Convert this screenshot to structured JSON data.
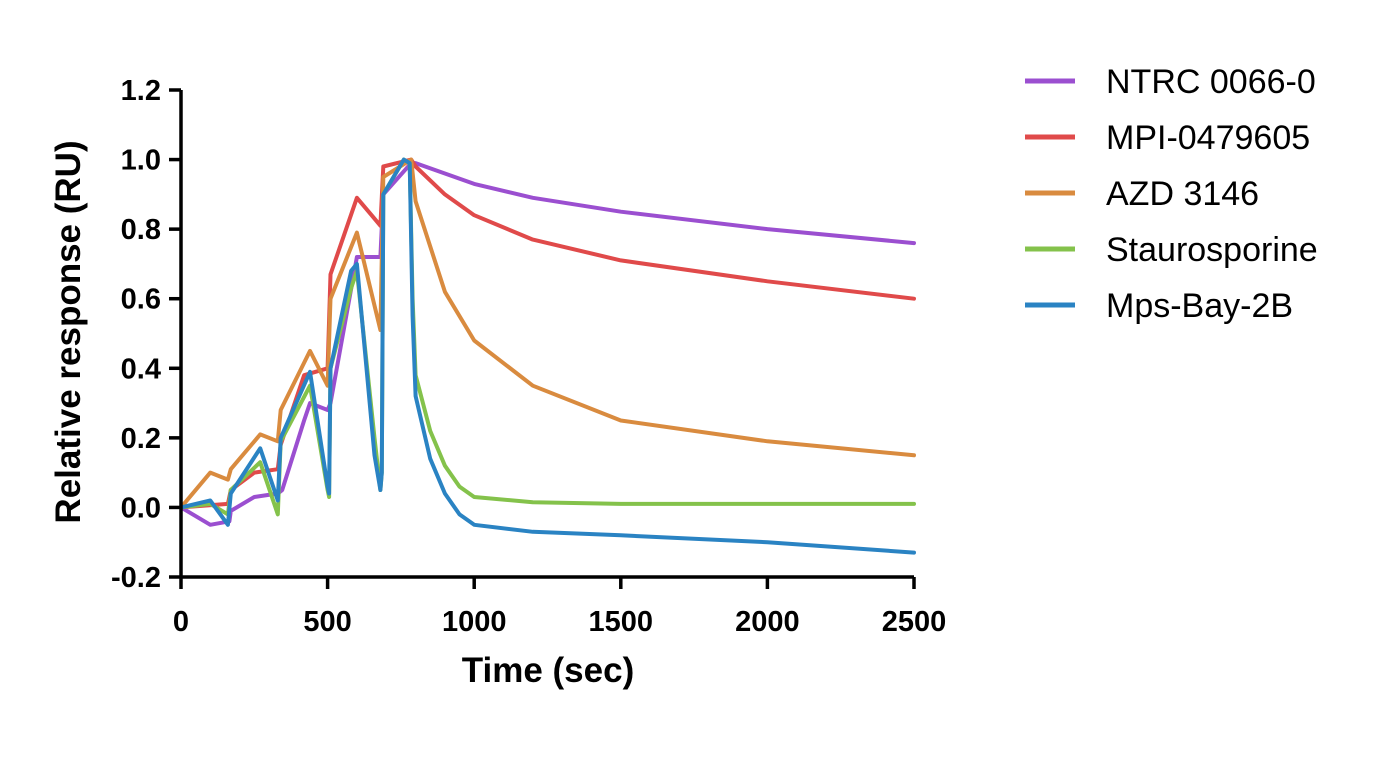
{
  "chart_data": {
    "type": "line",
    "title": "",
    "xlabel": "Time (sec)",
    "ylabel": "Relative response (RU)",
    "xlim": [
      0,
      2500
    ],
    "ylim": [
      -0.2,
      1.2
    ],
    "xticks": [
      0,
      500,
      1000,
      1500,
      2000,
      2500
    ],
    "xtick_labels": [
      "0",
      "500",
      "1000",
      "1500",
      "2000",
      "2500"
    ],
    "yticks": [
      -0.2,
      0.0,
      0.2,
      0.4,
      0.6,
      0.8,
      1.0,
      1.2
    ],
    "ytick_labels": [
      "-0.2",
      "0.0",
      "0.2",
      "0.4",
      "0.6",
      "0.8",
      "1.0",
      "1.2"
    ],
    "grid": false,
    "legend_position": "right",
    "series": [
      {
        "name": "NTRC 0066-0",
        "color": "#9b4fd0",
        "x": [
          0,
          100,
          165,
          170,
          250,
          330,
          345,
          420,
          440,
          500,
          510,
          600,
          680,
          690,
          785,
          800,
          900,
          1000,
          1200,
          1500,
          2000,
          2500
        ],
        "y": [
          0.0,
          -0.05,
          -0.04,
          -0.01,
          0.03,
          0.04,
          0.05,
          0.25,
          0.3,
          0.28,
          0.3,
          0.72,
          0.72,
          0.9,
          0.99,
          0.99,
          0.96,
          0.93,
          0.89,
          0.85,
          0.8,
          0.76
        ]
      },
      {
        "name": "MPI-0479605",
        "color": "#e04a4a",
        "x": [
          0,
          160,
          170,
          250,
          330,
          340,
          420,
          500,
          510,
          600,
          650,
          680,
          690,
          785,
          800,
          900,
          1000,
          1200,
          1500,
          2000,
          2500
        ],
        "y": [
          0.0,
          0.01,
          0.05,
          0.1,
          0.11,
          0.18,
          0.38,
          0.4,
          0.67,
          0.89,
          0.84,
          0.81,
          0.98,
          1.0,
          0.98,
          0.9,
          0.84,
          0.77,
          0.71,
          0.65,
          0.6
        ]
      },
      {
        "name": "AZD 3146",
        "color": "#d98b3f",
        "x": [
          0,
          100,
          160,
          170,
          270,
          330,
          340,
          440,
          500,
          510,
          600,
          680,
          690,
          785,
          800,
          900,
          1000,
          1200,
          1500,
          2000,
          2500
        ],
        "y": [
          0.0,
          0.1,
          0.08,
          0.11,
          0.21,
          0.19,
          0.28,
          0.45,
          0.35,
          0.6,
          0.79,
          0.51,
          0.95,
          1.0,
          0.88,
          0.62,
          0.48,
          0.35,
          0.25,
          0.19,
          0.15
        ]
      },
      {
        "name": "Staurosporine",
        "color": "#84c24b",
        "x": [
          0,
          100,
          160,
          170,
          270,
          330,
          340,
          440,
          500,
          505,
          510,
          580,
          600,
          660,
          680,
          685,
          690,
          760,
          780,
          790,
          800,
          850,
          900,
          950,
          1000,
          1200,
          1500,
          2000,
          2500
        ],
        "y": [
          0.0,
          0.01,
          -0.02,
          0.05,
          0.13,
          -0.02,
          0.19,
          0.35,
          0.05,
          0.03,
          0.4,
          0.63,
          0.68,
          0.2,
          0.05,
          0.1,
          0.9,
          1.0,
          0.99,
          0.6,
          0.38,
          0.22,
          0.12,
          0.06,
          0.03,
          0.015,
          0.01,
          0.01,
          0.01
        ]
      },
      {
        "name": "Mps-Bay-2B",
        "color": "#2a83c3",
        "x": [
          0,
          100,
          160,
          170,
          270,
          330,
          340,
          440,
          500,
          505,
          510,
          580,
          600,
          660,
          680,
          685,
          690,
          760,
          780,
          790,
          800,
          850,
          900,
          950,
          1000,
          1200,
          1500,
          2000,
          2500
        ],
        "y": [
          0.0,
          0.02,
          -0.05,
          0.04,
          0.17,
          0.02,
          0.2,
          0.39,
          0.06,
          0.04,
          0.4,
          0.68,
          0.7,
          0.15,
          0.05,
          0.1,
          0.9,
          1.0,
          0.99,
          0.55,
          0.32,
          0.14,
          0.04,
          -0.02,
          -0.05,
          -0.07,
          -0.08,
          -0.1,
          -0.13
        ]
      }
    ]
  }
}
